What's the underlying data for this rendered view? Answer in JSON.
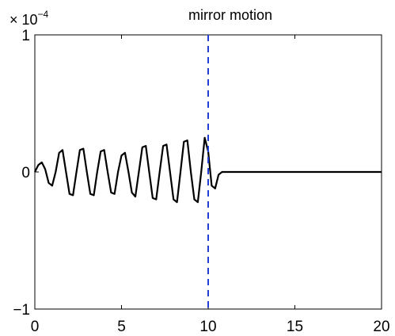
{
  "chart_data": {
    "type": "line",
    "title": "mirror motion",
    "xlabel": "",
    "ylabel": "",
    "xlim": [
      0,
      20
    ],
    "ylim": [
      -1,
      1
    ],
    "y_scale_factor": {
      "base": "× 10",
      "exponent": "−4"
    },
    "x_ticks": [
      "0",
      "5",
      "10",
      "15",
      "20"
    ],
    "y_ticks": [
      "−1",
      "0",
      "1"
    ],
    "grid": false,
    "legend": "none",
    "colors": {
      "signal": "#000000",
      "marker": "#1f3fd6",
      "axes": "#000000"
    },
    "series": [
      {
        "x": [
          0,
          0.2,
          0.4,
          0.6,
          0.8,
          1.0,
          1.2,
          1.4,
          1.6,
          1.8,
          2.0,
          2.2,
          2.4,
          2.6,
          2.8,
          3.0,
          3.2,
          3.4,
          3.6,
          3.8,
          4.0,
          4.2,
          4.4,
          4.6,
          4.8,
          5.0,
          5.2,
          5.4,
          5.6,
          5.8,
          6.0,
          6.2,
          6.4,
          6.6,
          6.8,
          7.0,
          7.2,
          7.4,
          7.6,
          7.8,
          8.0,
          8.2,
          8.4,
          8.6,
          8.8,
          9.0,
          9.2,
          9.4,
          9.6,
          9.8,
          10.0,
          10.2,
          10.4,
          10.6,
          10.8,
          11,
          12,
          13,
          14,
          15,
          16,
          17,
          18,
          19,
          20
        ],
        "y": [
          0.0,
          0.05,
          0.07,
          0.02,
          -0.08,
          -0.1,
          0.0,
          0.14,
          0.16,
          0.0,
          -0.16,
          -0.17,
          0.0,
          0.16,
          0.17,
          0.0,
          -0.16,
          -0.17,
          0.0,
          0.15,
          0.16,
          0.0,
          -0.15,
          -0.16,
          0.0,
          0.12,
          0.14,
          0.0,
          -0.15,
          -0.18,
          0.0,
          0.18,
          0.19,
          0.0,
          -0.19,
          -0.2,
          0.0,
          0.19,
          0.2,
          0.0,
          -0.2,
          -0.22,
          0.0,
          0.22,
          0.23,
          0.0,
          -0.2,
          -0.22,
          0.0,
          0.25,
          0.15,
          -0.1,
          -0.12,
          -0.02,
          0.0,
          0.0,
          0.0,
          0.0,
          0.0,
          0.0,
          0.0,
          0.0,
          0.0,
          0.0,
          0.0
        ]
      }
    ],
    "markers": [
      {
        "type": "vline",
        "x": 10,
        "style": "dashed"
      }
    ]
  }
}
